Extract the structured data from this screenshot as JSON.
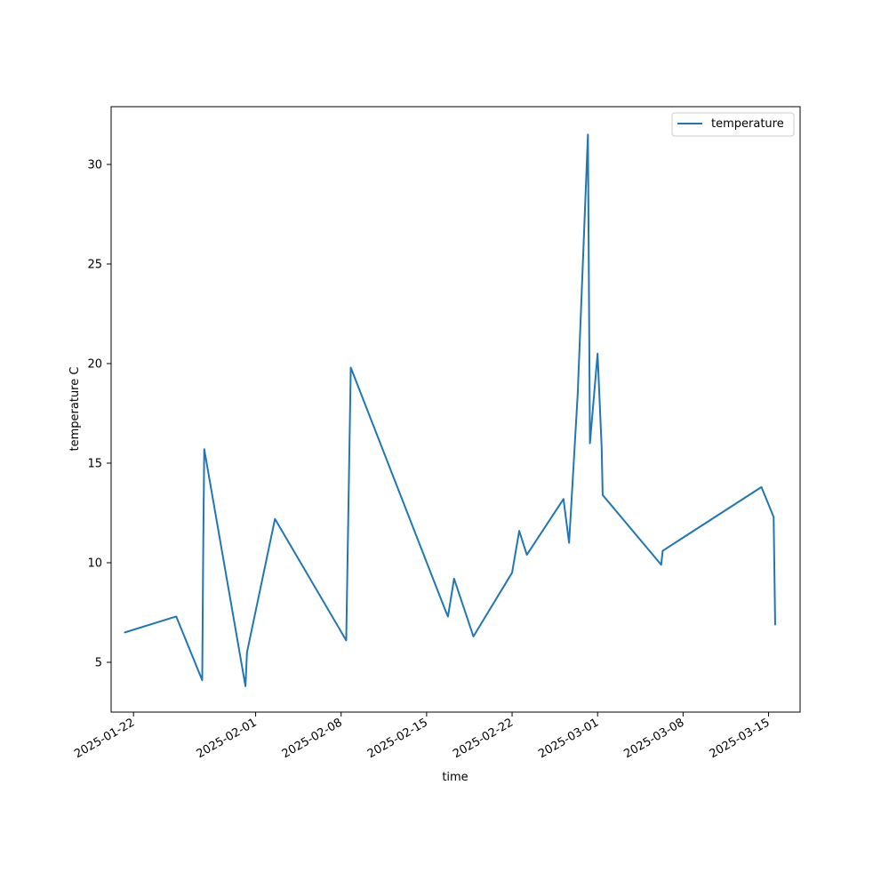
{
  "chart_data": {
    "type": "line",
    "title": "",
    "xlabel": "time",
    "ylabel": "temperature C",
    "x_type": "date",
    "xlim": [
      "2025-01-20T04:00",
      "2025-03-17T14:00"
    ],
    "ylim": [
      2.5,
      32.9
    ],
    "x_ticks": [
      "2025-01-22",
      "2025-02-01",
      "2025-02-08",
      "2025-02-15",
      "2025-02-22",
      "2025-03-01",
      "2025-03-08",
      "2025-03-15"
    ],
    "y_ticks": [
      5,
      10,
      15,
      20,
      25,
      30
    ],
    "grid": false,
    "legend": {
      "position": "top-right",
      "entries": [
        "temperature"
      ]
    },
    "colors": {
      "series": "#1f77b4",
      "axes": "#000000",
      "legend_border": "#cccccc"
    },
    "series": [
      {
        "name": "temperature",
        "x": [
          "2025-01-21T07:00",
          "2025-01-25T12:00",
          "2025-01-27T15:00",
          "2025-01-27T17:00",
          "2025-01-27T19:00",
          "2025-01-31T04:00",
          "2025-01-31T07:00",
          "2025-02-02T14:00",
          "2025-02-08T10:00",
          "2025-02-08T19:00",
          "2025-02-16T13:00",
          "2025-02-16T18:00",
          "2025-02-17T06:00",
          "2025-02-18T20:00",
          "2025-02-22T00:00",
          "2025-02-22T14:00",
          "2025-02-23T05:00",
          "2025-02-26T05:00",
          "2025-02-26T16:00",
          "2025-02-27T09:00",
          "2025-02-28T05:00",
          "2025-02-28T09:00",
          "2025-03-01T00:00",
          "2025-03-01T08:00",
          "2025-03-01T10:00",
          "2025-03-06T05:00",
          "2025-03-06T08:00",
          "2025-03-14T10:00",
          "2025-03-15T10:00",
          "2025-03-15T13:00"
        ],
        "y": [
          6.5,
          7.3,
          4.1,
          10.7,
          15.7,
          3.8,
          5.5,
          12.2,
          6.1,
          19.8,
          7.6,
          7.3,
          9.2,
          6.3,
          9.5,
          11.6,
          10.4,
          13.2,
          11.0,
          18.5,
          31.5,
          16.0,
          20.5,
          15.8,
          13.4,
          9.9,
          10.6,
          13.8,
          12.3,
          6.9
        ]
      }
    ]
  }
}
